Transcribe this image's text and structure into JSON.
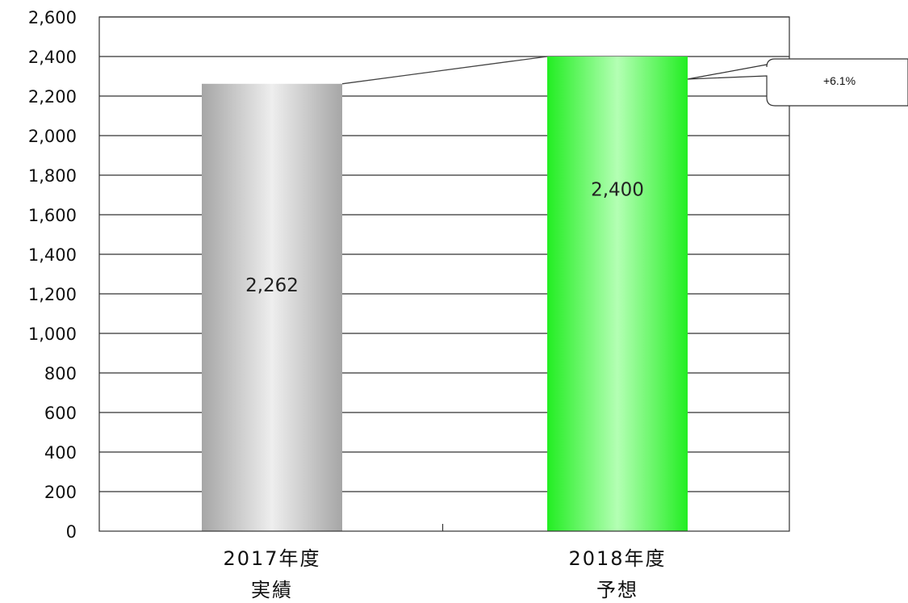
{
  "chart_data": {
    "type": "bar",
    "categories": [
      [
        "2017年度",
        "実績"
      ],
      [
        "2018年度",
        "予想"
      ]
    ],
    "values": [
      2262,
      2400
    ],
    "data_labels": [
      "2,262",
      "2,400"
    ],
    "ylim": [
      0,
      2600
    ],
    "yticks": [
      0,
      200,
      400,
      600,
      800,
      1000,
      1200,
      1400,
      1600,
      1800,
      2000,
      2200,
      2400,
      2600
    ],
    "ytick_labels": [
      "0",
      "200",
      "400",
      "600",
      "800",
      "1,000",
      "1,200",
      "1,400",
      "1,600",
      "1,800",
      "2,000",
      "2,200",
      "2,400",
      "2,600"
    ],
    "grid": true,
    "title": "",
    "xlabel": "",
    "ylabel": "",
    "bar_colors": [
      "#b8b8b8",
      "#22ee22"
    ],
    "annotation": {
      "text": "+6.1%",
      "target_category": 1
    }
  }
}
